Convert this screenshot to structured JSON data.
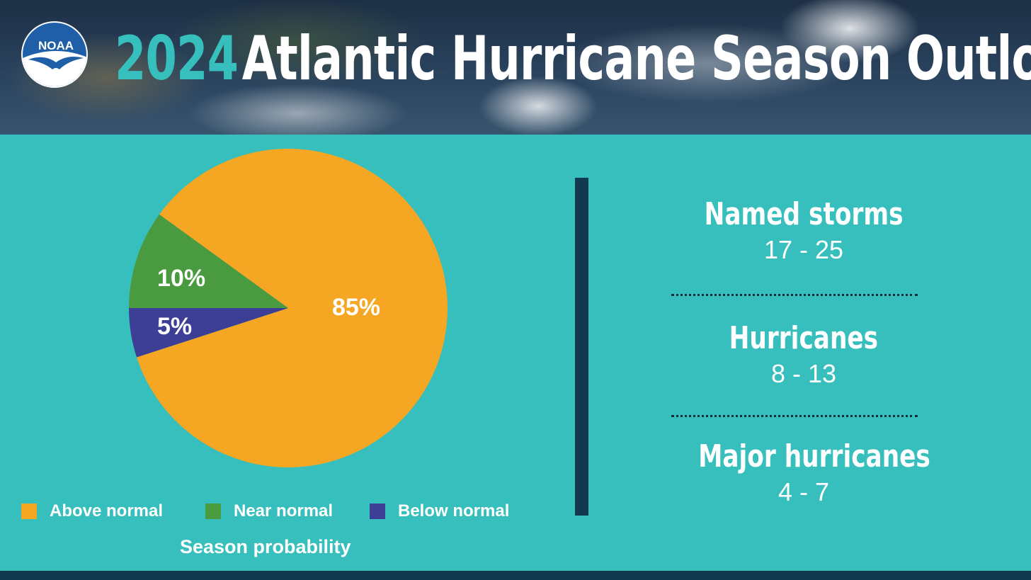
{
  "header": {
    "title_year": "2024",
    "title_rest": "Atlantic Hurricane Season Outlook",
    "logo_text": "NOAA",
    "logo_icon": "noaa-seagull-logo-icon"
  },
  "chart_data": {
    "type": "pie",
    "categories": [
      "Above normal",
      "Near normal",
      "Below normal"
    ],
    "values": [
      85,
      10,
      5
    ],
    "labels": [
      "85%",
      "10%",
      "5%"
    ],
    "colors": [
      "#f5a623",
      "#4a9a3f",
      "#3d3f96"
    ],
    "caption": "Season probability",
    "legend_position": "bottom"
  },
  "stats": [
    {
      "label": "Named storms",
      "value": "17 - 25"
    },
    {
      "label": "Hurricanes",
      "value": "8 - 13"
    },
    {
      "label": "Major hurricanes",
      "value": "4 - 7"
    }
  ],
  "colors": {
    "background": "#36bfbc",
    "dark_accent": "#113a4f",
    "title_year": "#36bfbc"
  }
}
